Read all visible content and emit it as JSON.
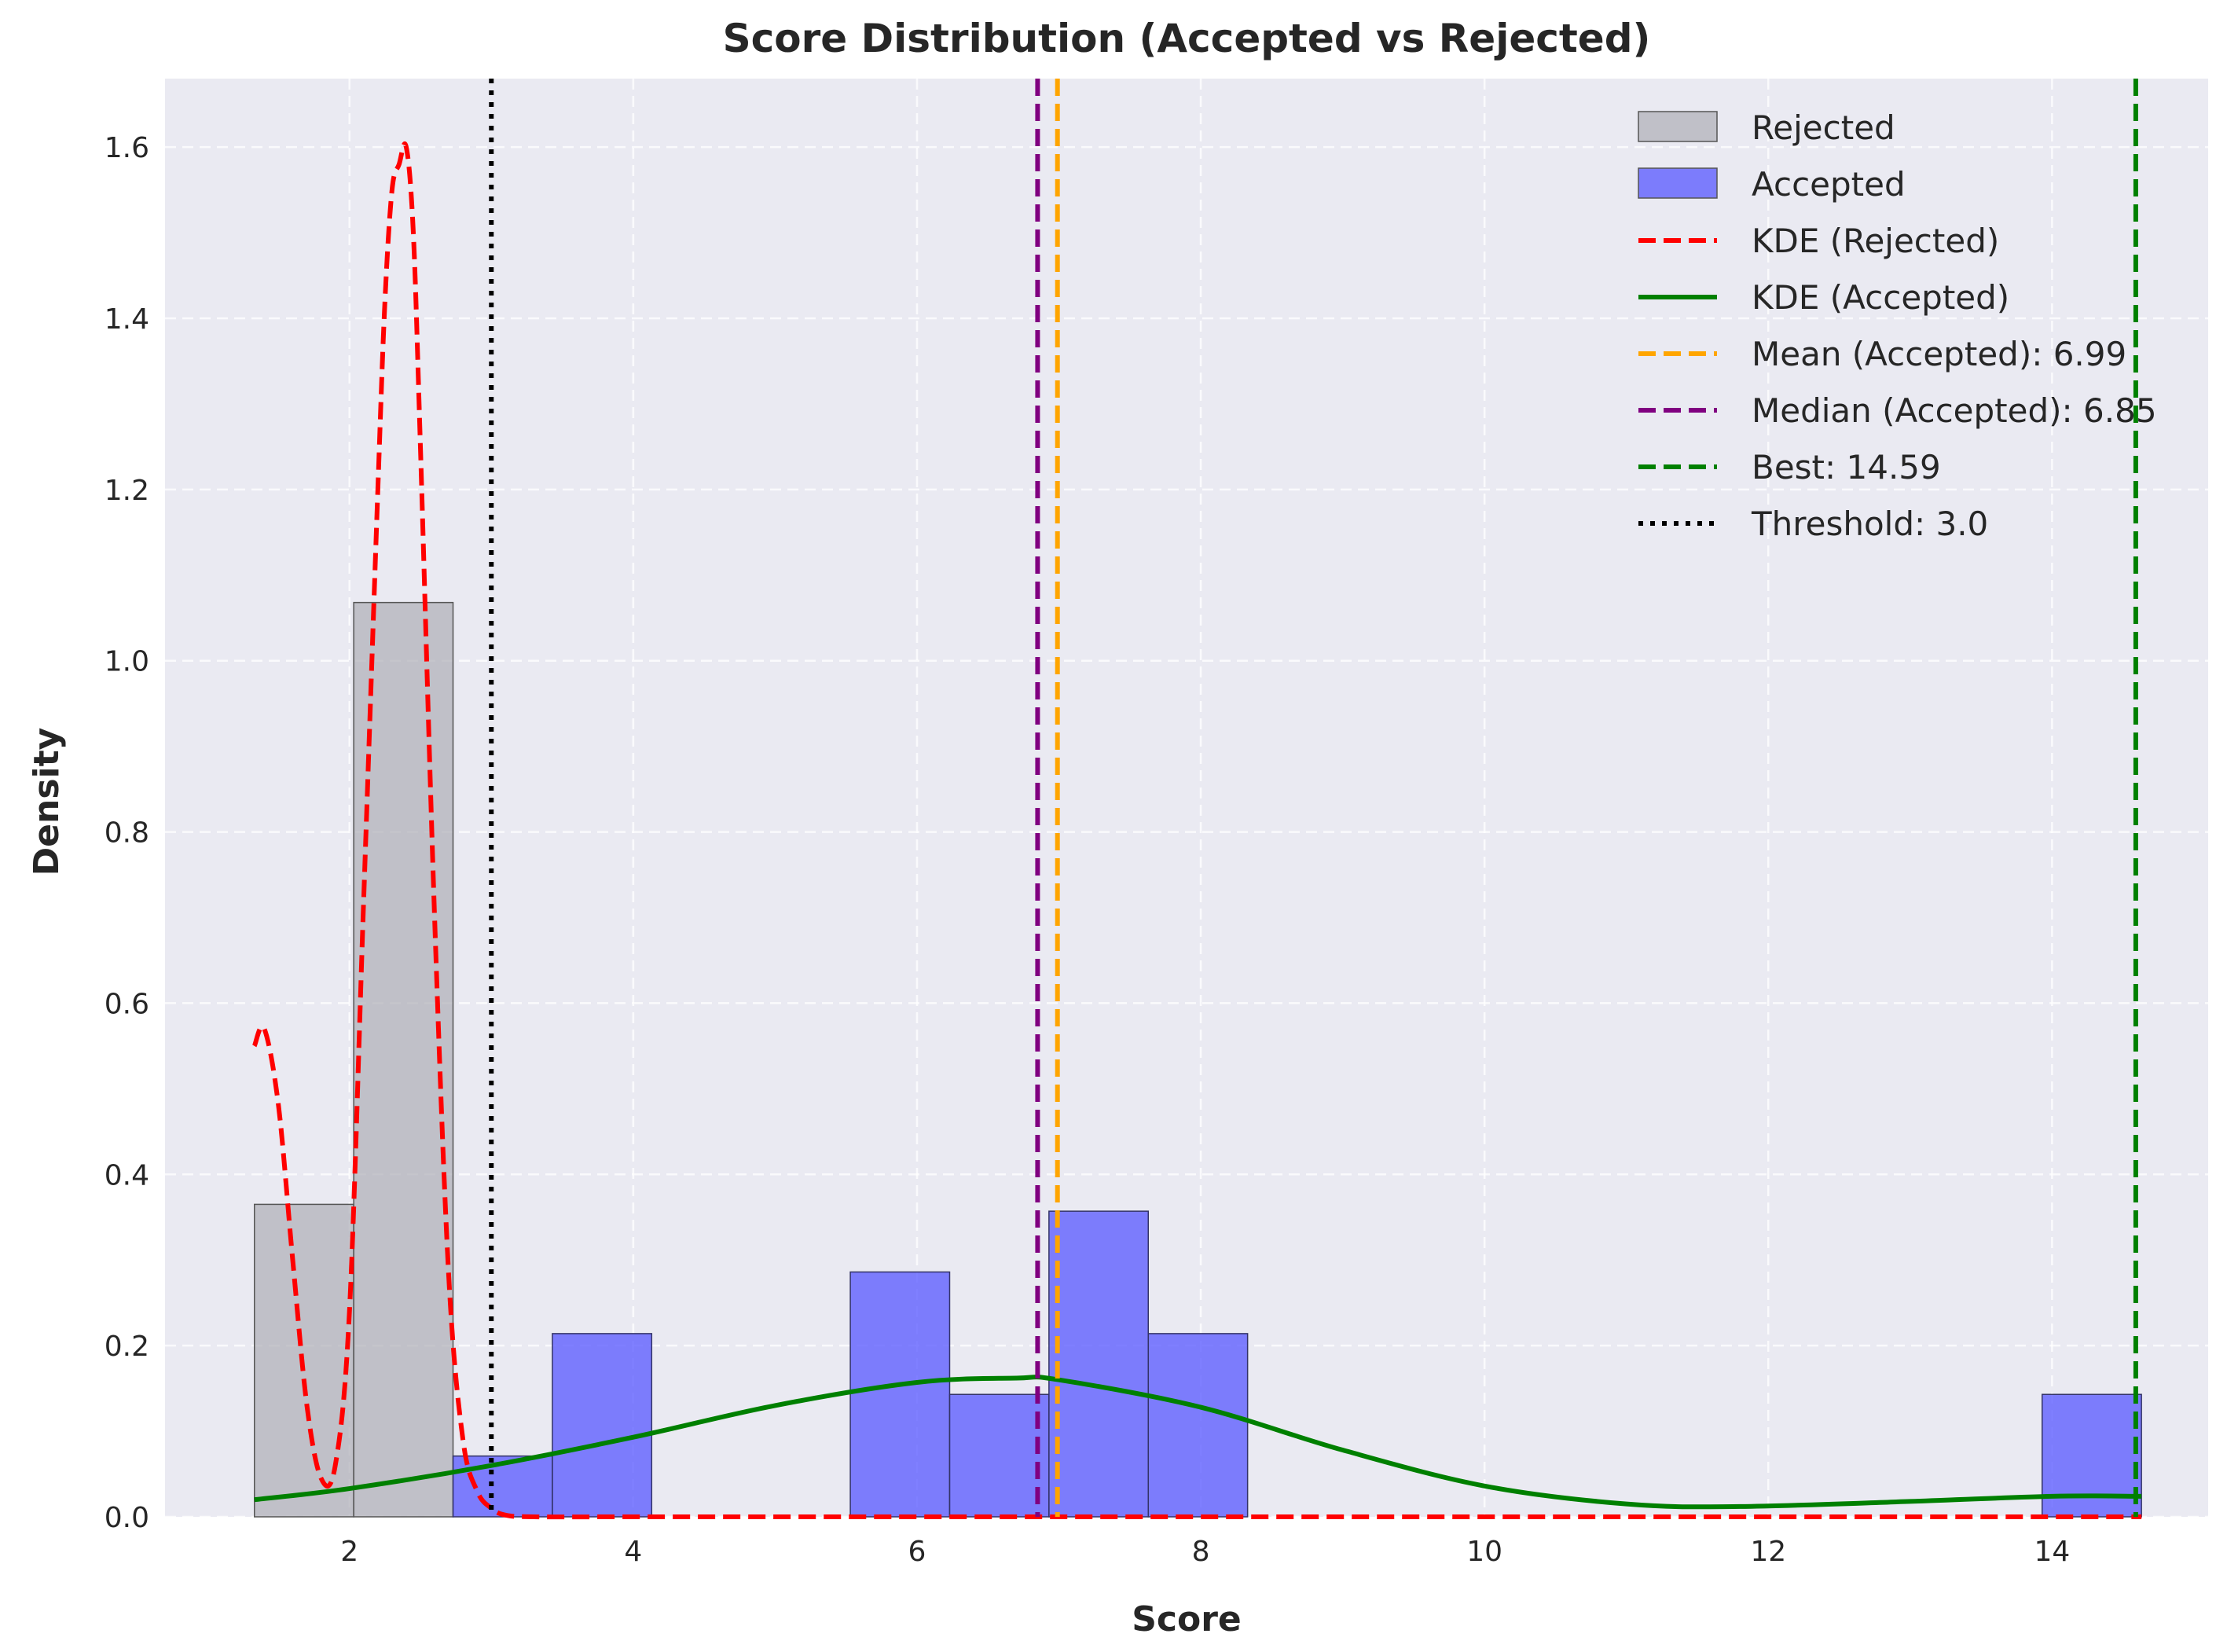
{
  "chart_data": {
    "type": "histogram",
    "title": "Score Distribution (Accepted vs Rejected)",
    "xlabel": "Score",
    "ylabel": "Density",
    "xlim": [
      0.7,
      15.1
    ],
    "ylim": [
      0,
      1.68
    ],
    "xticks": [
      2,
      4,
      6,
      8,
      10,
      12,
      14
    ],
    "yticks": [
      0.0,
      0.2,
      0.4,
      0.6,
      0.8,
      1.0,
      1.2,
      1.4,
      1.6
    ],
    "grid": true,
    "legend_position": "top-right",
    "bin_edges": [
      1.33,
      2.03,
      2.73,
      3.43,
      4.13,
      4.83,
      5.53,
      6.23,
      6.93,
      7.63,
      8.33,
      9.03,
      9.73,
      10.43,
      11.13,
      11.83,
      12.53,
      13.23,
      13.93,
      14.63
    ],
    "histograms": [
      {
        "name": "Rejected",
        "color": "#a9a9b0",
        "edge_color": "#555555",
        "values": [
          0.365,
          1.068,
          0,
          0,
          0,
          0,
          0,
          0,
          0,
          0,
          0,
          0,
          0,
          0,
          0,
          0,
          0,
          0,
          0
        ]
      },
      {
        "name": "Accepted",
        "color": "#5c5cff",
        "edge_color": "#333366",
        "values": [
          0,
          0,
          0.071,
          0.214,
          0,
          0,
          0.286,
          0.143,
          0.357,
          0.214,
          0,
          0,
          0,
          0,
          0,
          0,
          0,
          0,
          0.143
        ]
      }
    ],
    "kde": [
      {
        "name": "KDE (Rejected)",
        "color": "#ff0000",
        "style": "dashed",
        "x": [
          1.33,
          1.4,
          1.5,
          1.6,
          1.7,
          1.8,
          1.9,
          2.0,
          2.1,
          2.2,
          2.25,
          2.3,
          2.35,
          2.4,
          2.45,
          2.5,
          2.6,
          2.7,
          2.8,
          2.9,
          3.0,
          3.1,
          3.3,
          4.0,
          6.0,
          8.0,
          10.0,
          12.0,
          14.63
        ],
        "y": [
          0.55,
          0.57,
          0.48,
          0.3,
          0.13,
          0.045,
          0.06,
          0.24,
          0.72,
          1.2,
          1.42,
          1.55,
          1.58,
          1.6,
          1.5,
          1.25,
          0.7,
          0.28,
          0.09,
          0.03,
          0.01,
          0.002,
          0,
          0,
          0,
          0,
          0,
          0,
          0
        ]
      },
      {
        "name": "KDE (Accepted)",
        "color": "#008000",
        "style": "solid",
        "x": [
          1.33,
          2.0,
          3.0,
          4.0,
          5.0,
          6.0,
          6.7,
          7.0,
          8.0,
          9.0,
          10.0,
          11.0,
          11.8,
          13.0,
          14.0,
          14.63
        ],
        "y": [
          0.02,
          0.033,
          0.06,
          0.093,
          0.13,
          0.157,
          0.162,
          0.16,
          0.128,
          0.078,
          0.036,
          0.015,
          0.012,
          0.018,
          0.024,
          0.024
        ]
      }
    ],
    "vlines": [
      {
        "name": "Mean (Accepted): 6.99",
        "x": 6.99,
        "color": "#ffa500",
        "style": "dashed"
      },
      {
        "name": "Median (Accepted): 6.85",
        "x": 6.85,
        "color": "#800080",
        "style": "dashed"
      },
      {
        "name": "Best: 14.59",
        "x": 14.59,
        "color": "#008000",
        "style": "dashed"
      },
      {
        "name": "Threshold: 3.0",
        "x": 3.0,
        "color": "#000000",
        "style": "dotted"
      }
    ],
    "legend": [
      {
        "label": "Rejected",
        "kind": "patch",
        "color": "#a9a9b0"
      },
      {
        "label": "Accepted",
        "kind": "patch",
        "color": "#5c5cff"
      },
      {
        "label": "KDE (Rejected)",
        "kind": "line",
        "color": "#ff0000",
        "style": "dashed"
      },
      {
        "label": "KDE (Accepted)",
        "kind": "line",
        "color": "#008000",
        "style": "solid"
      },
      {
        "label": "Mean (Accepted): 6.99",
        "kind": "line",
        "color": "#ffa500",
        "style": "dashed"
      },
      {
        "label": "Median (Accepted): 6.85",
        "kind": "line",
        "color": "#800080",
        "style": "dashed"
      },
      {
        "label": "Best: 14.59",
        "kind": "line",
        "color": "#008000",
        "style": "dashed"
      },
      {
        "label": "Threshold: 3.0",
        "kind": "line",
        "color": "#000000",
        "style": "dotted"
      }
    ]
  }
}
